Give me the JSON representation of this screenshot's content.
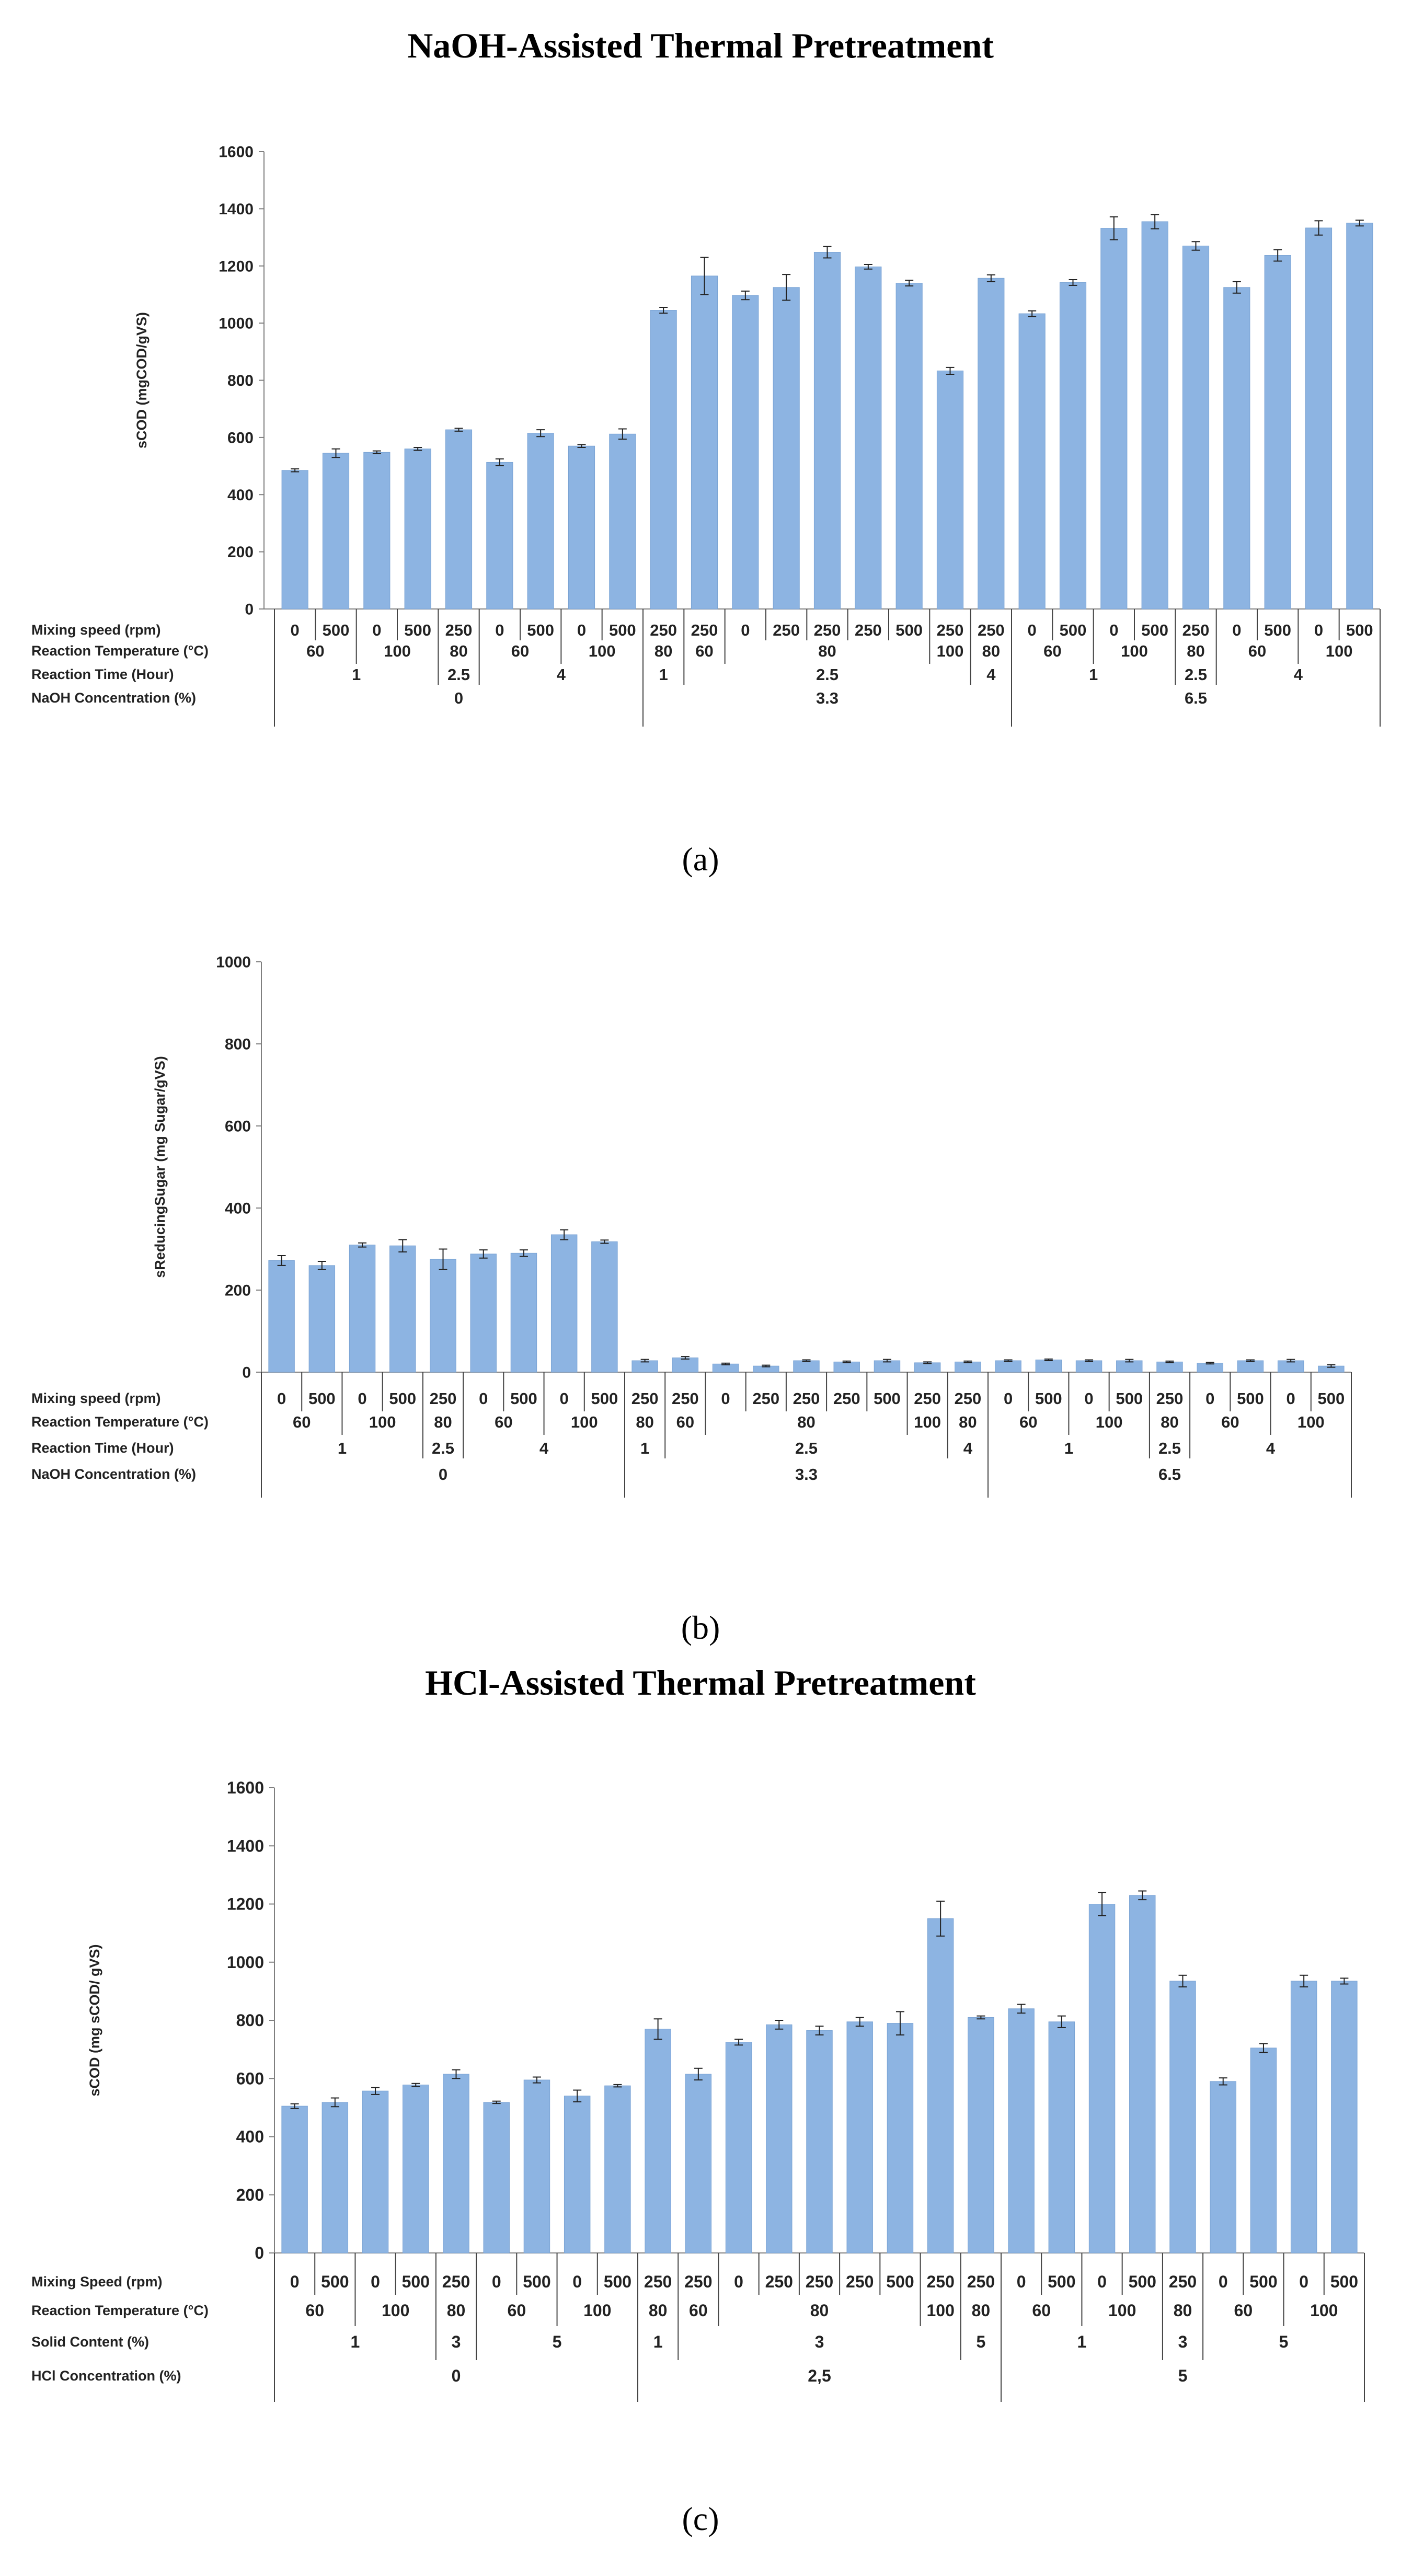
{
  "titles": {
    "naoh": "NaOH-Assisted Thermal Pretreatment",
    "hcl": "HCl-Assisted Thermal Pretreatment"
  },
  "colors": {
    "bar": "#8db4e2",
    "bar_edge": "#7aa3d4",
    "axis": "#7f7f7f",
    "text": "#222222"
  },
  "chart_data": [
    {
      "type": "bar",
      "panel": "(a)",
      "title": "NaOH-Assisted Thermal Pretreatment",
      "ylabel": "sCOD (mgCOD/gVS)",
      "ylim": [
        0,
        1600
      ],
      "yticks": [
        0,
        200,
        400,
        600,
        800,
        1000,
        1200,
        1400,
        1600
      ],
      "values": [
        485,
        545,
        548,
        560,
        627,
        513,
        615,
        570,
        612,
        1045,
        1165,
        1097,
        1125,
        1248,
        1197,
        1140,
        833,
        1157,
        1033,
        1142,
        1332,
        1355,
        1270,
        1125,
        1237,
        1333,
        1350
      ],
      "errors": [
        5,
        15,
        5,
        5,
        5,
        12,
        12,
        5,
        18,
        10,
        65,
        15,
        45,
        20,
        8,
        10,
        12,
        12,
        10,
        10,
        40,
        25,
        15,
        20,
        20,
        25,
        10
      ],
      "row_labels": [
        "Mixing speed (rpm)",
        "Reaction Temperature (°C)",
        "Reaction Time (Hour)",
        "NaOH Concentration (%)"
      ],
      "categories": [
        "0",
        "500",
        "0",
        "500",
        "250",
        "0",
        "500",
        "0",
        "500",
        "250",
        "250",
        "0",
        "250",
        "250",
        "250",
        "500",
        "250",
        "250",
        "0",
        "500",
        "0",
        "500",
        "250",
        "0",
        "500",
        "0",
        "500"
      ],
      "groups": [
        [
          {
            "label": "60",
            "span": 2
          },
          {
            "label": "100",
            "span": 2
          },
          {
            "label": "80",
            "span": 1
          },
          {
            "label": "60",
            "span": 2
          },
          {
            "label": "100",
            "span": 2
          },
          {
            "label": "80",
            "span": 1
          },
          {
            "label": "60",
            "span": 1
          },
          {
            "label": "80",
            "span": 5
          },
          {
            "label": "100",
            "span": 1
          },
          {
            "label": "80",
            "span": 1
          },
          {
            "label": "60",
            "span": 2
          },
          {
            "label": "100",
            "span": 2
          },
          {
            "label": "80",
            "span": 1
          },
          {
            "label": "60",
            "span": 2
          },
          {
            "label": "100",
            "span": 2
          }
        ],
        [
          {
            "label": "1",
            "span": 4
          },
          {
            "label": "2.5",
            "span": 1
          },
          {
            "label": "4",
            "span": 4
          },
          {
            "label": "1",
            "span": 1
          },
          {
            "label": "2.5",
            "span": 7
          },
          {
            "label": "4",
            "span": 1
          },
          {
            "label": "1",
            "span": 4
          },
          {
            "label": "2.5",
            "span": 1
          },
          {
            "label": "4",
            "span": 4
          }
        ],
        [
          {
            "label": "0",
            "span": 9
          },
          {
            "label": "3.3",
            "span": 9
          },
          {
            "label": "6.5",
            "span": 9
          }
        ]
      ]
    },
    {
      "type": "bar",
      "panel": "(b)",
      "title": "",
      "ylabel": "sReducingSugar (mg Sugar/gVS)",
      "ylim": [
        0,
        1000
      ],
      "yticks": [
        0,
        200,
        400,
        600,
        800,
        1000
      ],
      "values": [
        272,
        260,
        310,
        308,
        275,
        288,
        290,
        335,
        318,
        28,
        35,
        20,
        15,
        28,
        25,
        28,
        23,
        25,
        28,
        30,
        28,
        28,
        25,
        22,
        28,
        28,
        15
      ],
      "errors": [
        12,
        10,
        5,
        15,
        25,
        10,
        8,
        12,
        4,
        3,
        3,
        2,
        2,
        2,
        2,
        3,
        2,
        2,
        2,
        2,
        2,
        3,
        2,
        2,
        2,
        3,
        3
      ],
      "row_labels": [
        "Mixing speed (rpm)",
        "Reaction Temperature (°C)",
        "Reaction Time (Hour)",
        "NaOH Concentration (%)"
      ],
      "categories": [
        "0",
        "500",
        "0",
        "500",
        "250",
        "0",
        "500",
        "0",
        "500",
        "250",
        "250",
        "0",
        "250",
        "250",
        "250",
        "500",
        "250",
        "250",
        "0",
        "500",
        "0",
        "500",
        "250",
        "0",
        "500",
        "0",
        "500"
      ],
      "groups": [
        [
          {
            "label": "60",
            "span": 2
          },
          {
            "label": "100",
            "span": 2
          },
          {
            "label": "80",
            "span": 1
          },
          {
            "label": "60",
            "span": 2
          },
          {
            "label": "100",
            "span": 2
          },
          {
            "label": "80",
            "span": 1
          },
          {
            "label": "60",
            "span": 1
          },
          {
            "label": "80",
            "span": 5
          },
          {
            "label": "100",
            "span": 1
          },
          {
            "label": "80",
            "span": 1
          },
          {
            "label": "60",
            "span": 2
          },
          {
            "label": "100",
            "span": 2
          },
          {
            "label": "80",
            "span": 1
          },
          {
            "label": "60",
            "span": 2
          },
          {
            "label": "100",
            "span": 2
          }
        ],
        [
          {
            "label": "1",
            "span": 4
          },
          {
            "label": "2.5",
            "span": 1
          },
          {
            "label": "4",
            "span": 4
          },
          {
            "label": "1",
            "span": 1
          },
          {
            "label": "2.5",
            "span": 7
          },
          {
            "label": "4",
            "span": 1
          },
          {
            "label": "1",
            "span": 4
          },
          {
            "label": "2.5",
            "span": 1
          },
          {
            "label": "4",
            "span": 4
          }
        ],
        [
          {
            "label": "0",
            "span": 9
          },
          {
            "label": "3.3",
            "span": 9
          },
          {
            "label": "6.5",
            "span": 9
          }
        ]
      ]
    },
    {
      "type": "bar",
      "panel": "(c)",
      "title": "HCl-Assisted Thermal Pretreatment",
      "ylabel": "sCOD (mg sCOD/ gVS)",
      "ylim": [
        0,
        1600
      ],
      "yticks": [
        0,
        200,
        400,
        600,
        800,
        1000,
        1200,
        1400,
        1600
      ],
      "values": [
        505,
        518,
        557,
        578,
        615,
        518,
        595,
        540,
        575,
        770,
        615,
        725,
        785,
        765,
        795,
        790,
        1150,
        810,
        840,
        795,
        1200,
        1230,
        935,
        590,
        705,
        935,
        935
      ],
      "errors": [
        8,
        15,
        12,
        5,
        15,
        4,
        10,
        20,
        4,
        35,
        20,
        10,
        15,
        15,
        15,
        40,
        60,
        5,
        15,
        20,
        40,
        15,
        20,
        12,
        15,
        20,
        10
      ],
      "row_labels": [
        "Mixing Speed (rpm)",
        "Reaction Temperature (°C)",
        "Solid Content (%)",
        "HCl Concentration (%)"
      ],
      "categories": [
        "0",
        "500",
        "0",
        "500",
        "250",
        "0",
        "500",
        "0",
        "500",
        "250",
        "250",
        "0",
        "250",
        "250",
        "250",
        "500",
        "250",
        "250",
        "0",
        "500",
        "0",
        "500",
        "250",
        "0",
        "500",
        "0",
        "500"
      ],
      "groups": [
        [
          {
            "label": "60",
            "span": 2
          },
          {
            "label": "100",
            "span": 2
          },
          {
            "label": "80",
            "span": 1
          },
          {
            "label": "60",
            "span": 2
          },
          {
            "label": "100",
            "span": 2
          },
          {
            "label": "80",
            "span": 1
          },
          {
            "label": "60",
            "span": 1
          },
          {
            "label": "80",
            "span": 5
          },
          {
            "label": "100",
            "span": 1
          },
          {
            "label": "80",
            "span": 1
          },
          {
            "label": "60",
            "span": 2
          },
          {
            "label": "100",
            "span": 2
          },
          {
            "label": "80",
            "span": 1
          },
          {
            "label": "60",
            "span": 2
          },
          {
            "label": "100",
            "span": 2
          }
        ],
        [
          {
            "label": "1",
            "span": 4
          },
          {
            "label": "3",
            "span": 1
          },
          {
            "label": "5",
            "span": 4
          },
          {
            "label": "1",
            "span": 1
          },
          {
            "label": "3",
            "span": 7
          },
          {
            "label": "5",
            "span": 1
          },
          {
            "label": "1",
            "span": 4
          },
          {
            "label": "3",
            "span": 1
          },
          {
            "label": "5",
            "span": 4
          }
        ],
        [
          {
            "label": "0",
            "span": 9
          },
          {
            "label": "2,5",
            "span": 9
          },
          {
            "label": "5",
            "span": 9
          }
        ]
      ]
    }
  ]
}
